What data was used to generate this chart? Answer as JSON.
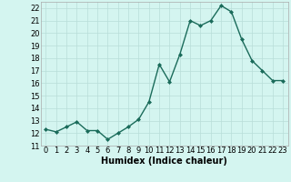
{
  "x": [
    0,
    1,
    2,
    3,
    4,
    5,
    6,
    7,
    8,
    9,
    10,
    11,
    12,
    13,
    14,
    15,
    16,
    17,
    18,
    19,
    20,
    21,
    22,
    23
  ],
  "y": [
    12.3,
    12.1,
    12.5,
    12.9,
    12.2,
    12.2,
    11.5,
    12.0,
    12.5,
    13.1,
    14.5,
    17.5,
    16.1,
    18.3,
    21.0,
    20.6,
    21.0,
    22.2,
    21.7,
    19.5,
    17.8,
    17.0,
    16.2,
    16.2
  ],
  "line_color": "#1a6b5a",
  "marker": "D",
  "marker_size": 2.0,
  "bg_color": "#d4f5f0",
  "grid_color": "#b8ddd8",
  "xlabel": "Humidex (Indice chaleur)",
  "ylim": [
    11,
    22.5
  ],
  "xlim": [
    -0.5,
    23.5
  ],
  "yticks": [
    11,
    12,
    13,
    14,
    15,
    16,
    17,
    18,
    19,
    20,
    21,
    22
  ],
  "xticks": [
    0,
    1,
    2,
    3,
    4,
    5,
    6,
    7,
    8,
    9,
    10,
    11,
    12,
    13,
    14,
    15,
    16,
    17,
    18,
    19,
    20,
    21,
    22,
    23
  ],
  "xtick_labels": [
    "0",
    "1",
    "2",
    "3",
    "4",
    "5",
    "6",
    "7",
    "8",
    "9",
    "10",
    "11",
    "12",
    "13",
    "14",
    "15",
    "16",
    "17",
    "18",
    "19",
    "20",
    "21",
    "22",
    "23"
  ],
  "ytick_labels": [
    "11",
    "12",
    "13",
    "14",
    "15",
    "16",
    "17",
    "18",
    "19",
    "20",
    "21",
    "22"
  ],
  "xlabel_fontsize": 7,
  "tick_fontsize": 6,
  "linewidth": 1.0
}
